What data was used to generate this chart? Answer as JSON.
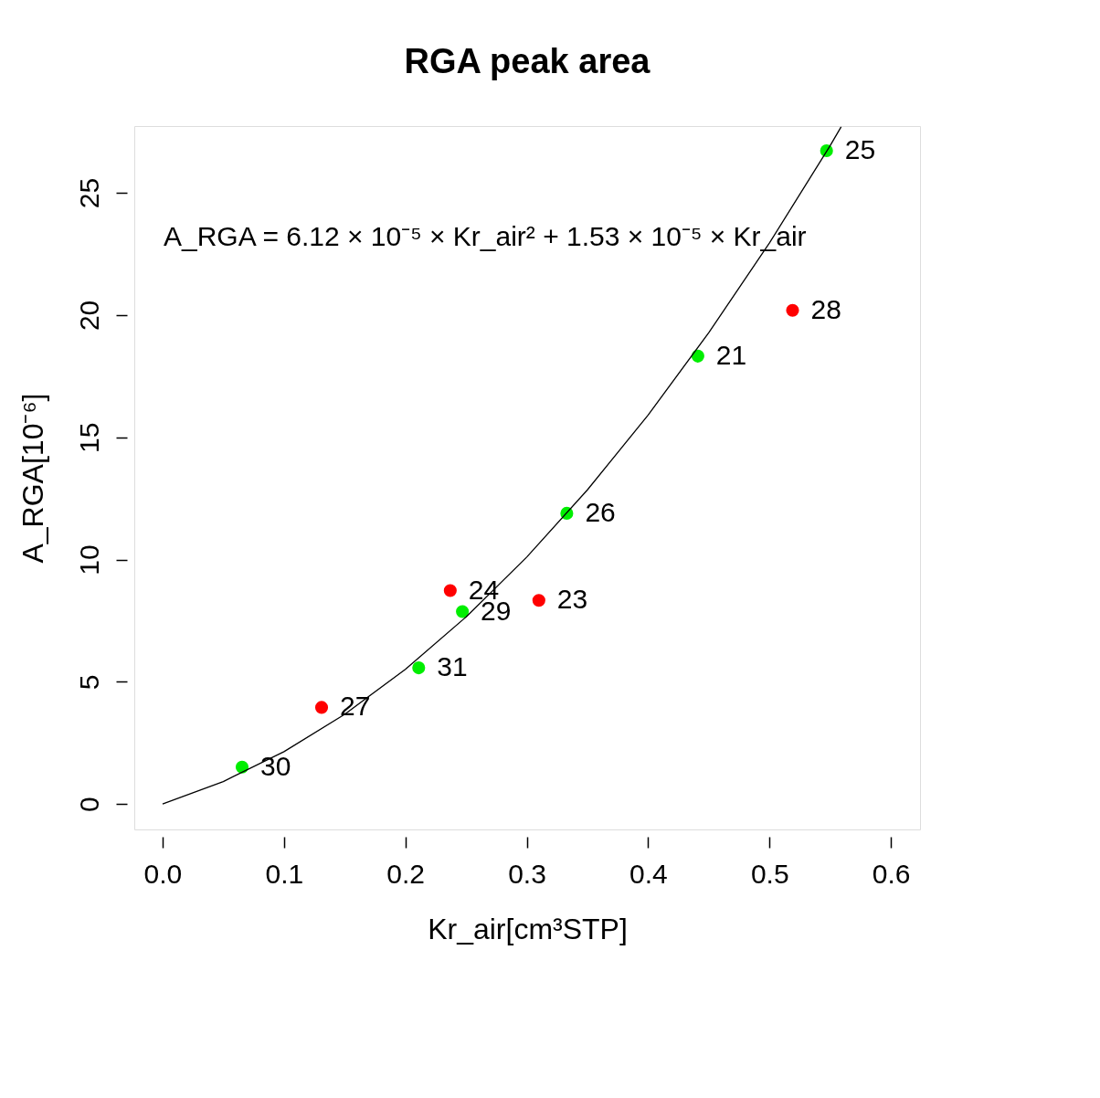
{
  "chart_data": {
    "type": "scatter",
    "title": "RGA peak area",
    "xlabel": "Kr_air[cm³STP]",
    "ylabel": "A_RGA[10⁻⁶]",
    "xlim": [
      -0.0233,
      0.624
    ],
    "ylim": [
      -1.04,
      27.73
    ],
    "xticks": [
      {
        "value": 0,
        "label": "0.0"
      },
      0.1,
      0.2,
      0.3,
      0.4,
      0.5,
      0.6
    ],
    "yticks": [
      0,
      5,
      10,
      15,
      20,
      25
    ],
    "grid": false,
    "marker": "circle",
    "series": [
      {
        "color": "#00ee00",
        "x": [
          0.0655,
          0.211,
          0.247,
          0.333,
          0.441,
          0.547
        ],
        "values": [
          1.51,
          5.57,
          7.87,
          11.89,
          18.32,
          26.72
        ]
      },
      {
        "color": "#ff0000",
        "x": [
          0.131,
          0.237,
          0.31,
          0.519
        ],
        "values": [
          3.95,
          8.73,
          8.33,
          20.19
        ]
      },
      {
        "type": "line",
        "marker": "none",
        "color": "#000000",
        "x": [
          0,
          0.05,
          0.1,
          0.15,
          0.2,
          0.25,
          0.3,
          0.35,
          0.4,
          0.45,
          0.5,
          0.55,
          0.559
        ],
        "values": [
          0,
          0.92,
          2.14,
          3.67,
          5.51,
          7.65,
          10.1,
          12.85,
          15.91,
          19.28,
          22.95,
          26.93,
          27.7
        ]
      }
    ],
    "annotations": [
      "A_RGA = 6.12 × 10⁻⁵ × Kr_air² + 1.53 × 10⁻⁵ × Kr_air",
      {
        "text": "30",
        "x": 0.0655,
        "y": 1.51
      },
      {
        "text": "27",
        "x": 0.131,
        "y": 3.95
      },
      {
        "text": "31",
        "x": 0.211,
        "y": 5.57
      },
      {
        "text": "24",
        "x": 0.237,
        "y": 8.73
      },
      {
        "text": "29",
        "x": 0.247,
        "y": 7.87
      },
      {
        "text": "23",
        "x": 0.31,
        "y": 8.33
      },
      {
        "text": "26",
        "x": 0.333,
        "y": 11.89
      },
      {
        "text": "21",
        "x": 0.441,
        "y": 18.32
      },
      {
        "text": "28",
        "x": 0.519,
        "y": 20.19
      },
      {
        "text": "25",
        "x": 0.547,
        "y": 26.72
      }
    ]
  }
}
